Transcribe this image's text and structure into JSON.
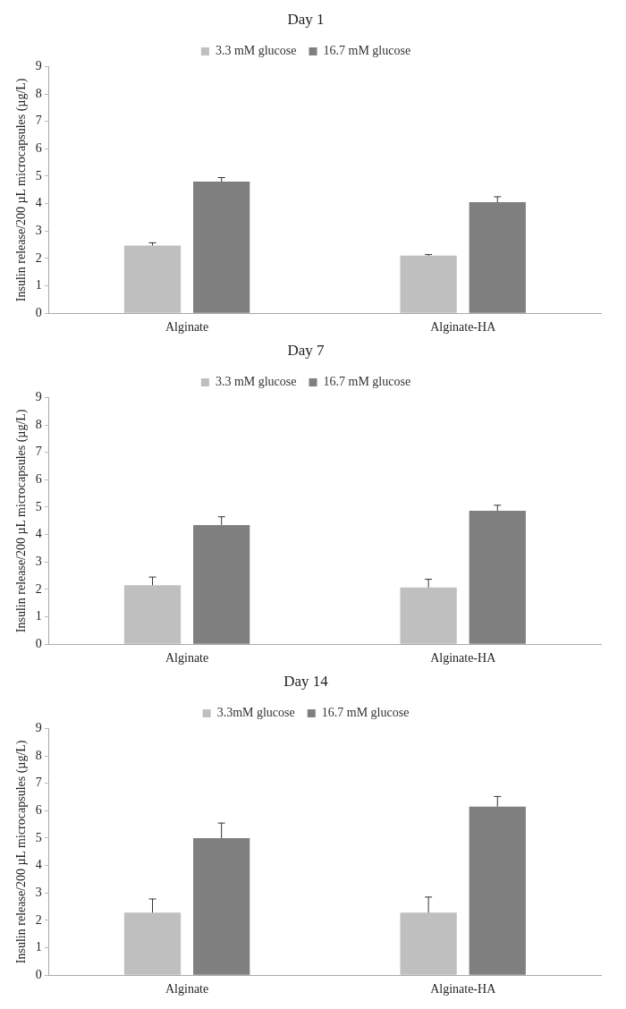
{
  "chart_data": [
    {
      "type": "bar",
      "title": "Day 1",
      "ylabel": "Insulin release/200 µL microcapsules (µg/L)",
      "categories": [
        "Alginate",
        "Alginate-HA"
      ],
      "ylim": [
        0,
        9
      ],
      "yticks": [
        0,
        1,
        2,
        3,
        4,
        5,
        6,
        7,
        8,
        9
      ],
      "grid": false,
      "legend": "top",
      "series": [
        {
          "name": "3.3 mM glucose",
          "color": "#bfbfbf",
          "values": [
            2.47,
            2.1
          ],
          "errors": [
            [
              2.47,
              2.57
            ],
            [
              2.1,
              2.14
            ]
          ]
        },
        {
          "name": "16.7 mM glucose",
          "color": "#7f7f7f",
          "values": [
            4.8,
            4.05
          ],
          "errors": [
            [
              4.8,
              4.95
            ],
            [
              4.05,
              4.25
            ]
          ]
        }
      ]
    },
    {
      "type": "bar",
      "title": "Day 7",
      "ylabel": "Insulin release/200 µL microcapsules (µg/L)",
      "categories": [
        "Alginate",
        "Alginate-HA"
      ],
      "ylim": [
        0,
        9
      ],
      "yticks": [
        0,
        1,
        2,
        3,
        4,
        5,
        6,
        7,
        8,
        9
      ],
      "grid": false,
      "legend": "top",
      "series": [
        {
          "name": "3.3 mM glucose",
          "color": "#bfbfbf",
          "values": [
            2.15,
            2.07
          ],
          "errors": [
            [
              2.15,
              2.45
            ],
            [
              2.07,
              2.37
            ]
          ]
        },
        {
          "name": "16.7 mM glucose",
          "color": "#7f7f7f",
          "values": [
            4.35,
            4.87
          ],
          "errors": [
            [
              4.35,
              4.65
            ],
            [
              4.87,
              5.07
            ]
          ]
        }
      ]
    },
    {
      "type": "bar",
      "title": "Day 14",
      "ylabel": "Insulin release/200 µL microcapsules (µg/L)",
      "categories": [
        "Alginate",
        "Alginate-HA"
      ],
      "ylim": [
        0,
        9
      ],
      "yticks": [
        0,
        1,
        2,
        3,
        4,
        5,
        6,
        7,
        8,
        9
      ],
      "grid": false,
      "legend": "top",
      "series": [
        {
          "name": "3.3mM glucose",
          "color": "#bfbfbf",
          "values": [
            2.28,
            2.28
          ],
          "errors": [
            [
              2.28,
              2.78
            ],
            [
              2.28,
              2.85
            ]
          ]
        },
        {
          "name": "16.7 mM glucose",
          "color": "#7f7f7f",
          "values": [
            5.0,
            6.15
          ],
          "errors": [
            [
              5.0,
              5.55
            ],
            [
              6.15,
              6.52
            ]
          ]
        }
      ]
    }
  ]
}
